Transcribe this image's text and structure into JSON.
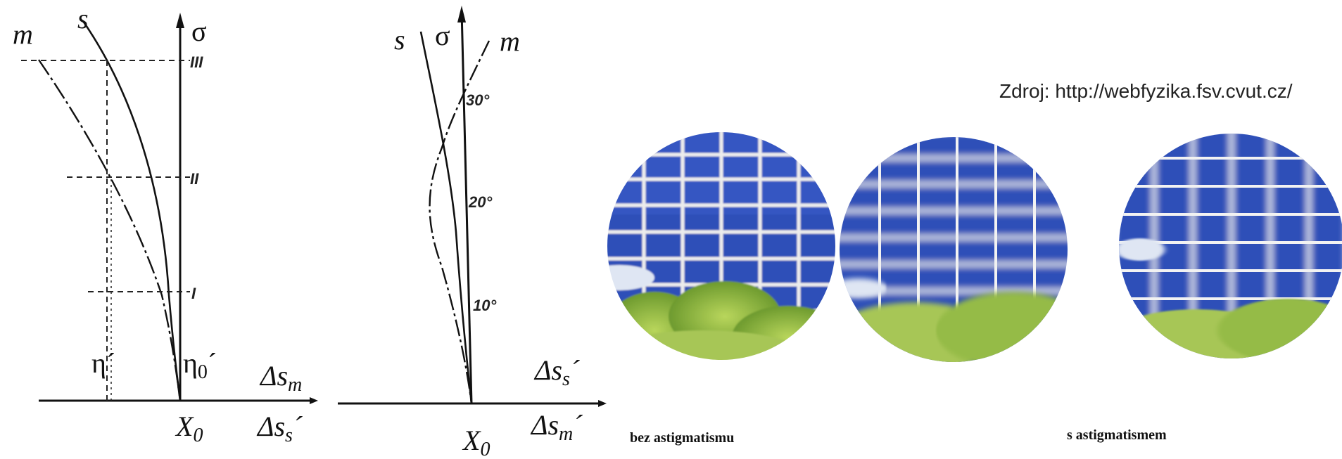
{
  "diagram_left": {
    "curve_m_label": "m",
    "curve_s_label": "s",
    "axis_y_label": "σ",
    "marks": [
      "III",
      "II",
      "I"
    ],
    "eta_label": "η´",
    "eta0_label": "η",
    "eta0_sub": "0",
    "eta0_prime": "´",
    "dsm_label": "Δs",
    "dsm_sub": "m",
    "dss_label": "Δs",
    "dss_sub": "s",
    "dss_prime": "´",
    "x0_label": "X",
    "x0_sub": "0"
  },
  "diagram_right": {
    "curve_s_label": "s",
    "axis_y_label": "σ",
    "curve_m_label": "m",
    "angles": [
      "30°",
      "20°",
      "10°"
    ],
    "dss_label": "Δs",
    "dss_sub": "s",
    "dss_prime": "´",
    "dsm_label": "Δs",
    "dsm_sub": "m",
    "dsm_prime": "´",
    "x0_label": "X",
    "x0_sub": "0"
  },
  "source_text": "Zdroj: http://webfyzika.fsv.cvut.cz/",
  "caption_without": "bez astigmatismu",
  "caption_with": "s astigmatismem",
  "colors": {
    "sky": "#2f4fb8",
    "grid": "#e8e8e8",
    "foliage": "#9cc24a"
  }
}
